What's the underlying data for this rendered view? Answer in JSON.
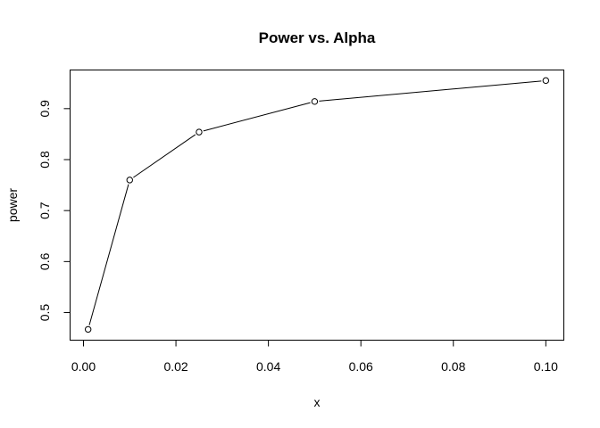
{
  "chart_data": {
    "type": "line",
    "title": "Power vs. Alpha",
    "xlabel": "x",
    "ylabel": "power",
    "xlim": [
      -0.0028,
      0.1038
    ],
    "ylim": [
      0.4467,
      0.9749
    ],
    "xticks": [
      0.0,
      0.02,
      0.04,
      0.06,
      0.08,
      0.1
    ],
    "xtick_labels": [
      "0.00",
      "0.02",
      "0.04",
      "0.06",
      "0.08",
      "0.10"
    ],
    "yticks": [
      0.5,
      0.6,
      0.7,
      0.8,
      0.9
    ],
    "ytick_labels": [
      "0.5",
      "0.6",
      "0.7",
      "0.8",
      "0.9"
    ],
    "grid": false,
    "legend": "none",
    "markers": "open-circle",
    "series": [
      {
        "x": [
          0.001,
          0.01,
          0.025,
          0.05,
          0.1
        ],
        "y": [
          0.467,
          0.76,
          0.854,
          0.914,
          0.955
        ]
      }
    ]
  }
}
